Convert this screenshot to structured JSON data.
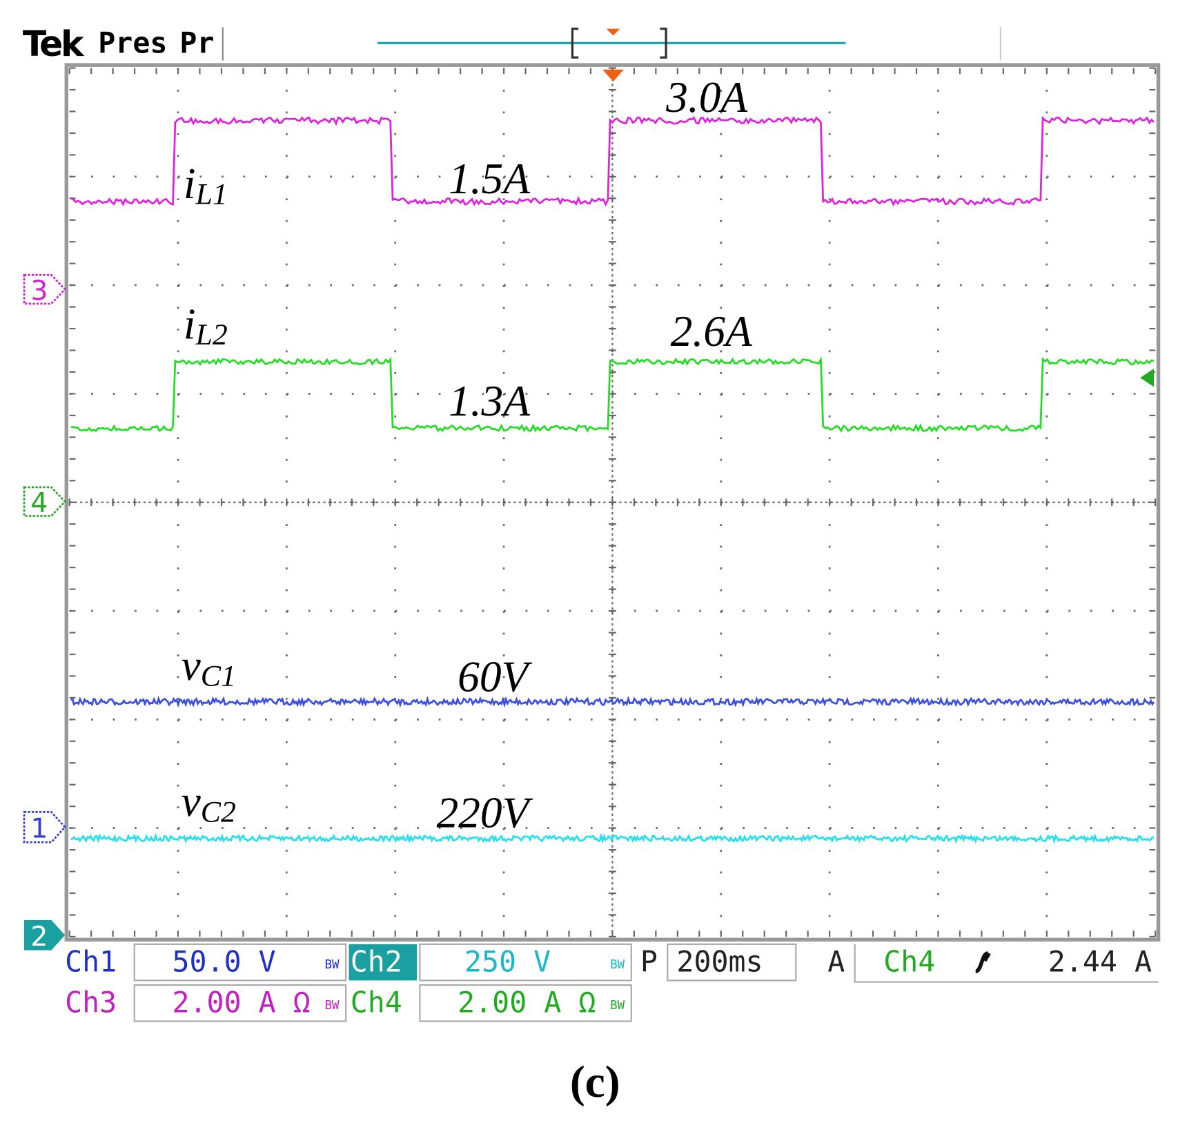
{
  "header": {
    "brand": "Tek",
    "mode": "Pres",
    "mode_cut": "Pr"
  },
  "trace_labels": [
    {
      "main": "i",
      "sub": "L1"
    },
    {
      "main": "i",
      "sub": "L2"
    },
    {
      "main": "v",
      "sub": "C1"
    },
    {
      "main": "v",
      "sub": "C2"
    }
  ],
  "level_labels": [
    "3.0A",
    "1.5A",
    "2.6A",
    "1.3A",
    "60V",
    "220V"
  ],
  "markers": [
    "3",
    "4",
    "1",
    "2"
  ],
  "settings": {
    "bw_mark": "BW",
    "rows": [
      [
        {
          "channel": "Ch1",
          "scale": "50.0 V"
        },
        {
          "channel": "Ch2",
          "scale": "250 V"
        }
      ],
      [
        {
          "channel": "Ch3",
          "scale": "2.00 A Ω"
        },
        {
          "channel": "Ch4",
          "scale": "2.00 A Ω"
        }
      ]
    ],
    "timebase": {
      "prefix": "P",
      "value": "200ms"
    },
    "trigger": {
      "prefix": "A",
      "source": "Ch4",
      "level": "2.44 A"
    }
  },
  "caption": "(c)"
}
